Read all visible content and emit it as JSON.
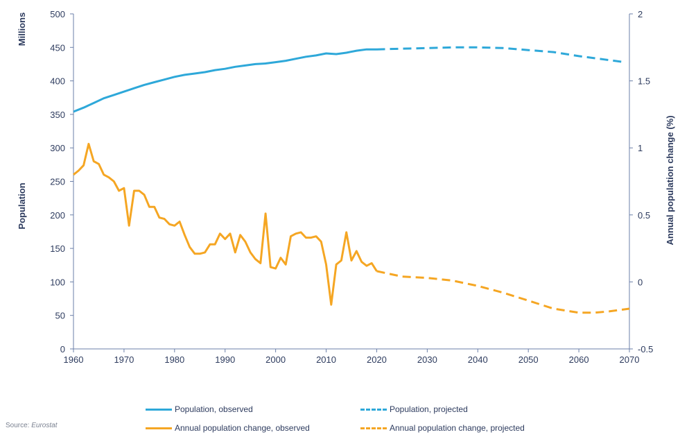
{
  "chart_data": {
    "type": "line",
    "x_axis": {
      "min": 1960,
      "max": 2070,
      "ticks": [
        1960,
        1970,
        1980,
        1990,
        2000,
        2010,
        2020,
        2030,
        2040,
        2050,
        2060,
        2070
      ]
    },
    "y_left": {
      "unit_label": "Millions",
      "label": "Population",
      "min": 0,
      "max": 500,
      "ticks": [
        0,
        50,
        100,
        150,
        200,
        250,
        300,
        350,
        400,
        450,
        500
      ]
    },
    "y_right": {
      "label": "Annual population change (%)",
      "min": -0.5,
      "max": 2,
      "ticks": [
        "-0.5",
        "0",
        "0.5",
        "1",
        "1.5",
        "2"
      ]
    },
    "series": [
      {
        "name": "Population, observed",
        "axis": "left",
        "style": "solid",
        "color": "#2ea8d9",
        "x": [
          1960,
          1962,
          1964,
          1966,
          1968,
          1970,
          1972,
          1974,
          1976,
          1978,
          1980,
          1982,
          1984,
          1986,
          1988,
          1990,
          1992,
          1994,
          1996,
          1998,
          2000,
          2002,
          2004,
          2006,
          2008,
          2010,
          2012,
          2014,
          2016,
          2018,
          2020
        ],
        "y": [
          354,
          360,
          367,
          374,
          379,
          384,
          389,
          394,
          398,
          402,
          406,
          409,
          411,
          413,
          416,
          418,
          421,
          423,
          425,
          426,
          428,
          430,
          433,
          436,
          438,
          441,
          440,
          442,
          445,
          447,
          447
        ]
      },
      {
        "name": "Population, projected",
        "axis": "left",
        "style": "dashed",
        "color": "#2ea8d9",
        "x": [
          2020,
          2025,
          2030,
          2035,
          2040,
          2045,
          2050,
          2055,
          2060,
          2065,
          2069
        ],
        "y": [
          447,
          448,
          449,
          450,
          450,
          449,
          446,
          443,
          437,
          432,
          428
        ]
      },
      {
        "name": "Annual population change, observed",
        "axis": "right",
        "style": "solid",
        "color": "#f5a623",
        "x": [
          1960,
          1961,
          1962,
          1963,
          1964,
          1965,
          1966,
          1967,
          1968,
          1969,
          1970,
          1971,
          1972,
          1973,
          1974,
          1975,
          1976,
          1977,
          1978,
          1979,
          1980,
          1981,
          1982,
          1983,
          1984,
          1985,
          1986,
          1987,
          1988,
          1989,
          1990,
          1991,
          1992,
          1993,
          1994,
          1995,
          1996,
          1997,
          1998,
          1999,
          2000,
          2001,
          2002,
          2003,
          2004,
          2005,
          2006,
          2007,
          2008,
          2009,
          2010,
          2011,
          2012,
          2013,
          2014,
          2015,
          2016,
          2017,
          2018,
          2019,
          2020
        ],
        "y": [
          0.8,
          0.83,
          0.87,
          1.03,
          0.9,
          0.88,
          0.8,
          0.78,
          0.75,
          0.68,
          0.7,
          0.42,
          0.68,
          0.68,
          0.65,
          0.56,
          0.56,
          0.48,
          0.47,
          0.43,
          0.42,
          0.45,
          0.35,
          0.26,
          0.21,
          0.21,
          0.22,
          0.28,
          0.28,
          0.36,
          0.32,
          0.36,
          0.22,
          0.35,
          0.3,
          0.22,
          0.17,
          0.14,
          0.51,
          0.11,
          0.1,
          0.18,
          0.13,
          0.34,
          0.36,
          0.37,
          0.33,
          0.33,
          0.34,
          0.3,
          0.13,
          -0.17,
          0.13,
          0.16,
          0.37,
          0.16,
          0.23,
          0.15,
          0.12,
          0.14,
          0.08
        ]
      },
      {
        "name": "Annual population change, projected",
        "axis": "right",
        "style": "dashed",
        "color": "#f5a623",
        "x": [
          2020,
          2025,
          2030,
          2035,
          2040,
          2045,
          2050,
          2055,
          2060,
          2063,
          2066,
          2070
        ],
        "y": [
          0.08,
          0.04,
          0.03,
          0.01,
          -0.03,
          -0.08,
          -0.14,
          -0.2,
          -0.23,
          -0.23,
          -0.22,
          -0.2
        ]
      }
    ]
  },
  "source": {
    "prefix": "Source: ",
    "name": "Eurostat"
  }
}
